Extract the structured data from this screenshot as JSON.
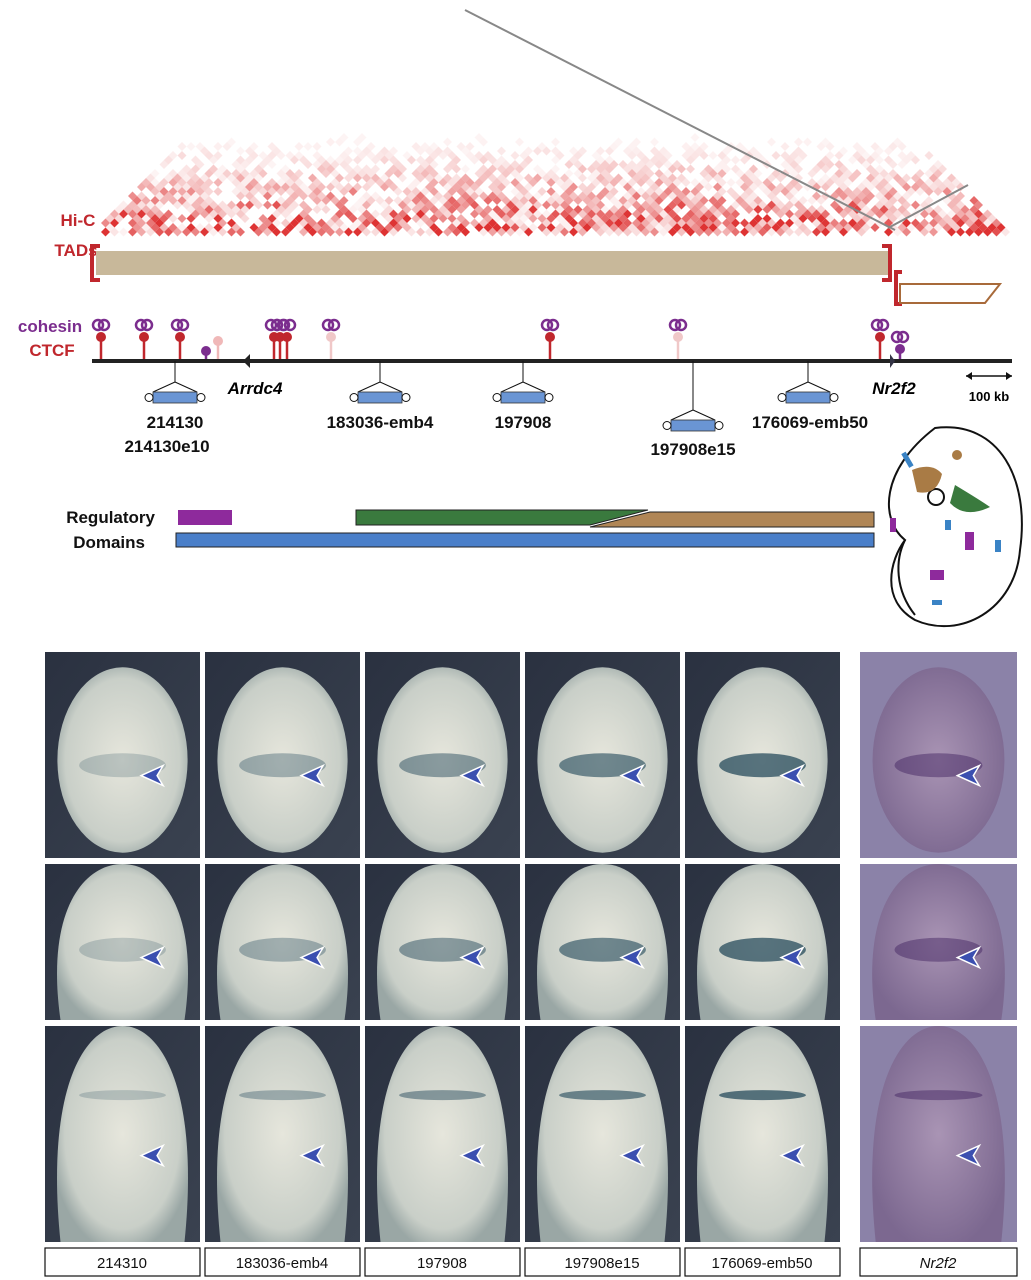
{
  "hic_label": "Hi-C",
  "tads_label": "TADs",
  "tracks": {
    "cohesin": "cohesin",
    "ctcf": "CTCF"
  },
  "genes": [
    "Arrdc4",
    "Nr2f2"
  ],
  "scale_bar": "100 kb",
  "enhancers": [
    "214130",
    "214130e10",
    "183036-emb4",
    "197908",
    "197908e15",
    "176069-emb50"
  ],
  "regulatory_domains": [
    "Regulatory",
    "Domains"
  ],
  "panel_labels": [
    "214310",
    "183036-emb4",
    "197908",
    "197908e15",
    "176069-emb50",
    "Nr2f2"
  ]
}
